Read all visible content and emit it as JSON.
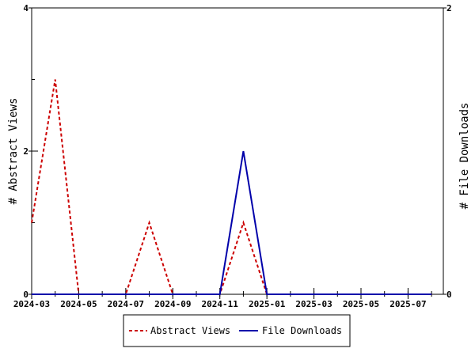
{
  "chart_data": {
    "type": "line",
    "x_axis": {
      "type": "date",
      "range": [
        "2024-03",
        "2025-08"
      ],
      "tick_labels": [
        "2024-03",
        "2024-05",
        "2024-07",
        "2024-09",
        "2024-11",
        "2025-01",
        "2025-03",
        "2025-05",
        "2025-07"
      ]
    },
    "y_left": {
      "label": "# Abstract Views",
      "range": [
        0,
        4
      ],
      "tick_labels": [
        "0",
        "2",
        "4"
      ]
    },
    "y_right": {
      "label": "# File Downloads",
      "range": [
        0,
        2
      ],
      "tick_labels": [
        "0",
        "2"
      ]
    },
    "x": [
      "2024-03",
      "2024-04",
      "2024-05",
      "2024-06",
      "2024-07",
      "2024-08",
      "2024-09",
      "2024-10",
      "2024-11",
      "2024-12",
      "2025-01",
      "2025-02",
      "2025-03",
      "2025-04",
      "2025-05",
      "2025-06",
      "2025-07",
      "2025-08"
    ],
    "series": [
      {
        "name": "Abstract Views",
        "axis": "left",
        "color": "#cc0000",
        "style": "dashed",
        "values": [
          1,
          3,
          0,
          0,
          0,
          1,
          0,
          0,
          0,
          1,
          0,
          0,
          0,
          0,
          0,
          0,
          0,
          0
        ]
      },
      {
        "name": "File Downloads",
        "axis": "right",
        "color": "#0000aa",
        "style": "solid",
        "values": [
          0,
          0,
          0,
          0,
          0,
          0,
          0,
          0,
          0,
          1,
          0,
          0,
          0,
          0,
          0,
          0,
          0,
          0
        ]
      }
    ],
    "grid": false,
    "legend_position": "bottom-center"
  }
}
